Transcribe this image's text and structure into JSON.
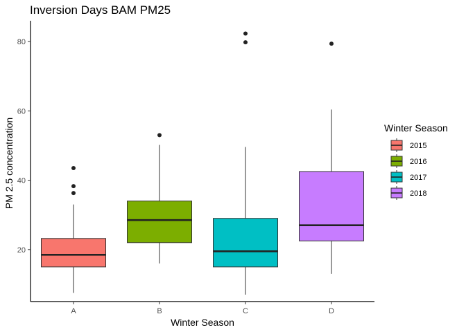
{
  "chart_data": {
    "type": "boxplot",
    "title": "Inversion Days BAM PM25",
    "xlabel": "Winter Season",
    "ylabel": "PM 2.5 concentration",
    "ylim": [
      5,
      86
    ],
    "yticks": [
      20,
      40,
      60,
      80
    ],
    "categories": [
      "A",
      "B",
      "C",
      "D"
    ],
    "grid": false,
    "legend": {
      "title": "Winter Season",
      "position": "right",
      "entries": [
        "2015",
        "2016",
        "2017",
        "2018"
      ]
    },
    "boxes": [
      {
        "category": "A",
        "season": "2015",
        "color": "#F8766D",
        "min": 7.5,
        "q1": 15,
        "median": 18.5,
        "q3": 23.2,
        "max": 33,
        "outliers": [
          36.3,
          38.3,
          43.5
        ]
      },
      {
        "category": "B",
        "season": "2016",
        "color": "#7CAE00",
        "min": 16,
        "q1": 22,
        "median": 28.5,
        "q3": 34,
        "max": 50.2,
        "outliers": [
          53
        ]
      },
      {
        "category": "C",
        "season": "2017",
        "color": "#00BFC4",
        "min": 7,
        "q1": 15,
        "median": 19.5,
        "q3": 29,
        "max": 49.6,
        "outliers": [
          79.8,
          82.3
        ]
      },
      {
        "category": "D",
        "season": "2018",
        "color": "#C77CFF",
        "min": 13,
        "q1": 22.5,
        "median": 27,
        "q3": 42.5,
        "max": 60.4,
        "outliers": [
          79.4
        ]
      }
    ]
  }
}
